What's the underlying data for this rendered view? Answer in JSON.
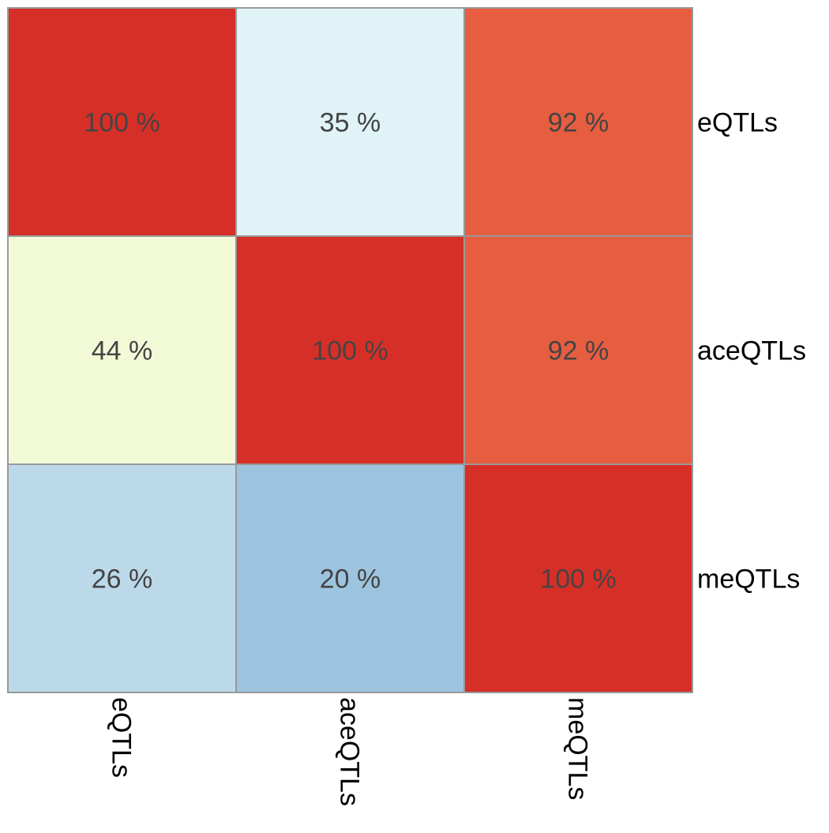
{
  "chart_data": {
    "type": "heatmap",
    "rows": [
      "eQTLs",
      "aceQTLs",
      "meQTLs"
    ],
    "columns": [
      "eQTLs",
      "aceQTLs",
      "meQTLs"
    ],
    "values": [
      [
        100,
        35,
        92
      ],
      [
        44,
        100,
        92
      ],
      [
        26,
        20,
        100
      ]
    ],
    "cell_labels": [
      [
        "100 %",
        "35 %",
        "92 %"
      ],
      [
        "44 %",
        "100 %",
        "92 %"
      ],
      [
        "26 %",
        "20 %",
        "100 %"
      ]
    ],
    "cell_colors": [
      [
        "#d62f27",
        "#e0f3f7",
        "#e75d40"
      ],
      [
        "#f2f9d7",
        "#d62f27",
        "#e75d40"
      ],
      [
        "#bcd9ea",
        "#9dc4df",
        "#d62f27"
      ]
    ],
    "border_color": "#999999",
    "cell_text_color": "#444444",
    "label_color": "#000000",
    "row_label_position": "right",
    "column_label_position": "bottom",
    "column_label_rotation": "vertical"
  }
}
